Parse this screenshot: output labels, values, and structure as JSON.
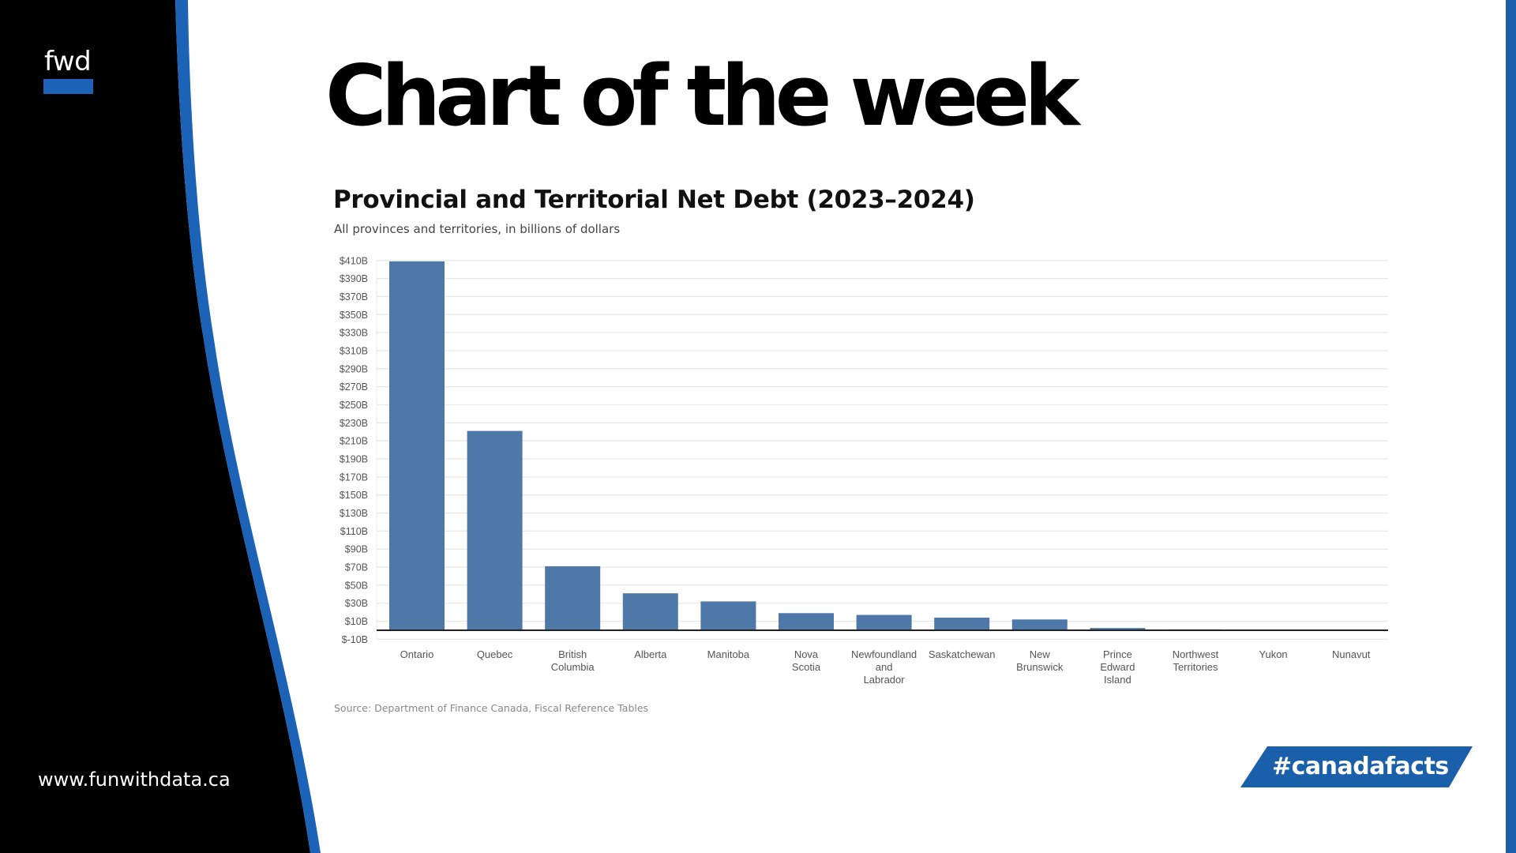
{
  "branding": {
    "logo_text": "fwd",
    "website": "www.funwithdata.ca",
    "hashtag": "#canadafacts",
    "colors": {
      "accent_blue": "#1c63b7",
      "sidebar_black": "#000000",
      "bar_blue": "#4e78a8"
    }
  },
  "header": {
    "title": "Chart of the week"
  },
  "chart_data": {
    "type": "bar",
    "title": "Provincial and Territorial Net Debt (2023–2024)",
    "subtitle": "All provinces and territories, in billions of dollars",
    "xlabel": "",
    "ylabel": "",
    "categories": [
      "Ontario",
      "Quebec",
      "British Columbia",
      "Alberta",
      "Manitoba",
      "Nova Scotia",
      "Newfoundland and Labrador",
      "Saskatchewan",
      "New Brunswick",
      "Prince Edward Island",
      "Northwest Territories",
      "Yukon",
      "Nunavut"
    ],
    "category_label_lines": [
      [
        "Ontario"
      ],
      [
        "Quebec"
      ],
      [
        "British",
        "Columbia"
      ],
      [
        "Alberta"
      ],
      [
        "Manitoba"
      ],
      [
        "Nova",
        "Scotia"
      ],
      [
        "Newfoundland",
        "and",
        "Labrador"
      ],
      [
        "Saskatchewan"
      ],
      [
        "New",
        "Brunswick"
      ],
      [
        "Prince",
        "Edward",
        "Island"
      ],
      [
        "Northwest",
        "Territories"
      ],
      [
        "Yukon"
      ],
      [
        "Nunavut"
      ]
    ],
    "values": [
      409,
      221,
      71,
      41,
      32,
      19,
      17,
      14,
      12,
      2.5,
      1,
      0,
      -0.5
    ],
    "ylim": [
      -10,
      410
    ],
    "yticks": [
      -10,
      10,
      30,
      50,
      70,
      90,
      110,
      130,
      150,
      170,
      190,
      210,
      230,
      250,
      270,
      290,
      310,
      330,
      350,
      370,
      390,
      410
    ],
    "ytick_labels": [
      "$-10B",
      "$10B",
      "$30B",
      "$50B",
      "$70B",
      "$90B",
      "$110B",
      "$130B",
      "$150B",
      "$170B",
      "$190B",
      "$210B",
      "$230B",
      "$250B",
      "$270B",
      "$290B",
      "$310B",
      "$330B",
      "$350B",
      "$370B",
      "$390B",
      "$410B"
    ],
    "grid": true,
    "legend": "none",
    "source": "Source: Department of Finance Canada, Fiscal Reference Tables"
  }
}
